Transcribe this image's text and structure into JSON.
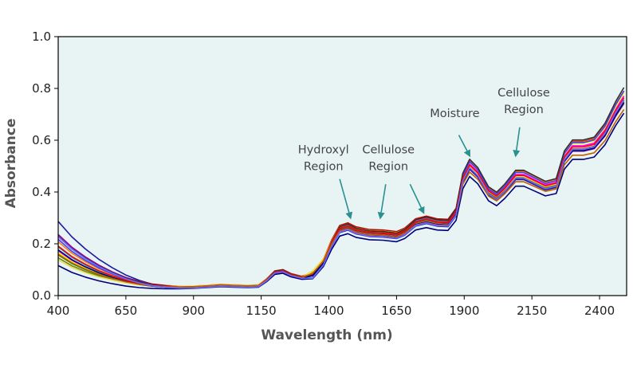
{
  "chart_data": {
    "type": "line",
    "title": "",
    "xlabel": "Wavelength (nm)",
    "ylabel": "Absorbance",
    "xlim": [
      400,
      2500
    ],
    "ylim": [
      0,
      1.0
    ],
    "x_ticks": [
      "400",
      "650",
      "900",
      "1150",
      "1400",
      "1650",
      "1900",
      "2150",
      "2400"
    ],
    "y_ticks": [
      "0.0",
      "0.2",
      "0.4",
      "0.6",
      "0.8",
      "1.0"
    ],
    "grid": false,
    "legend": "none",
    "background_color": "#e8f4f4",
    "arrow_color": "#2a9090",
    "base_spectrum": [
      [
        400,
        0.19
      ],
      [
        450,
        0.15
      ],
      [
        500,
        0.12
      ],
      [
        550,
        0.095
      ],
      [
        600,
        0.075
      ],
      [
        650,
        0.058
      ],
      [
        700,
        0.046
      ],
      [
        750,
        0.038
      ],
      [
        800,
        0.034
      ],
      [
        850,
        0.032
      ],
      [
        900,
        0.033
      ],
      [
        950,
        0.036
      ],
      [
        1000,
        0.04
      ],
      [
        1050,
        0.038
      ],
      [
        1100,
        0.036
      ],
      [
        1140,
        0.038
      ],
      [
        1170,
        0.06
      ],
      [
        1200,
        0.09
      ],
      [
        1230,
        0.095
      ],
      [
        1260,
        0.08
      ],
      [
        1300,
        0.07
      ],
      [
        1340,
        0.08
      ],
      [
        1380,
        0.13
      ],
      [
        1410,
        0.2
      ],
      [
        1440,
        0.255
      ],
      [
        1470,
        0.265
      ],
      [
        1500,
        0.25
      ],
      [
        1550,
        0.24
      ],
      [
        1600,
        0.238
      ],
      [
        1650,
        0.232
      ],
      [
        1680,
        0.245
      ],
      [
        1720,
        0.28
      ],
      [
        1760,
        0.29
      ],
      [
        1800,
        0.28
      ],
      [
        1840,
        0.278
      ],
      [
        1870,
        0.32
      ],
      [
        1895,
        0.45
      ],
      [
        1920,
        0.5
      ],
      [
        1950,
        0.47
      ],
      [
        1990,
        0.4
      ],
      [
        2020,
        0.38
      ],
      [
        2050,
        0.41
      ],
      [
        2090,
        0.46
      ],
      [
        2120,
        0.46
      ],
      [
        2160,
        0.44
      ],
      [
        2200,
        0.42
      ],
      [
        2240,
        0.43
      ],
      [
        2270,
        0.53
      ],
      [
        2300,
        0.57
      ],
      [
        2340,
        0.57
      ],
      [
        2380,
        0.58
      ],
      [
        2420,
        0.63
      ],
      [
        2460,
        0.71
      ],
      [
        2490,
        0.76
      ]
    ],
    "series": [
      {
        "color": "#1a1aa0",
        "offset": -0.012,
        "scale": 1.0,
        "start_bump": 0.1
      },
      {
        "color": "#00007a",
        "offset": -0.01,
        "scale": 0.94,
        "start_bump": -0.06
      },
      {
        "color": "#c00000",
        "offset": 0.008,
        "scale": 1.03,
        "start_bump": 0.03
      },
      {
        "color": "#800000",
        "offset": 0.005,
        "scale": 0.985,
        "start_bump": 0.04
      },
      {
        "color": "#ff00ff",
        "offset": 0.003,
        "scale": 1.01,
        "start_bump": -0.02
      },
      {
        "color": "#008000",
        "offset": 0.01,
        "scale": 0.97,
        "start_bump": -0.03
      },
      {
        "color": "#00a0a0",
        "offset": -0.004,
        "scale": 0.995,
        "start_bump": 0.0
      },
      {
        "color": "#808000",
        "offset": 0.015,
        "scale": 0.955,
        "start_bump": -0.04
      },
      {
        "color": "#ffff00",
        "offset": 0.006,
        "scale": 1.02,
        "start_bump": -0.03
      },
      {
        "color": "#e0e060",
        "offset": 0.018,
        "scale": 0.96,
        "start_bump": -0.05
      },
      {
        "color": "#ff8000",
        "offset": 0.0,
        "scale": 1.04,
        "start_bump": 0.01
      },
      {
        "color": "#4040ff",
        "offset": -0.008,
        "scale": 1.05,
        "start_bump": 0.02
      },
      {
        "color": "#a000a0",
        "offset": 0.002,
        "scale": 0.975,
        "start_bump": 0.05
      },
      {
        "color": "#303030",
        "offset": -0.006,
        "scale": 1.065,
        "start_bump": 0.03
      },
      {
        "color": "#ff0000",
        "offset": 0.004,
        "scale": 1.0,
        "start_bump": 0.0
      },
      {
        "color": "#000080",
        "offset": -0.002,
        "scale": 0.985,
        "start_bump": -0.01
      },
      {
        "color": "#c06000",
        "offset": 0.012,
        "scale": 0.93,
        "start_bump": -0.02
      },
      {
        "color": "#6a6aff",
        "offset": -0.014,
        "scale": 1.015,
        "start_bump": 0.04
      }
    ],
    "annotations": [
      {
        "lines": [
          "Hydroxyl",
          "Region"
        ],
        "text_x": 1380,
        "text_y": 0.55,
        "arrow_from": [
          1440,
          0.45
        ],
        "arrow_to": [
          1480,
          0.3
        ]
      },
      {
        "lines": [
          "Cellulose",
          "Region"
        ],
        "text_x": 1620,
        "text_y": 0.55,
        "arrow_from": [
          1610,
          0.43
        ],
        "arrow_to": [
          1590,
          0.3
        ]
      },
      {
        "lines": [],
        "text_x": 0,
        "text_y": 0,
        "arrow_from": [
          1700,
          0.43
        ],
        "arrow_to": [
          1750,
          0.32
        ]
      },
      {
        "lines": [
          "Moisture"
        ],
        "text_x": 1865,
        "text_y": 0.69,
        "arrow_from": [
          1880,
          0.62
        ],
        "arrow_to": [
          1920,
          0.54
        ]
      },
      {
        "lines": [
          "Cellulose",
          "Region"
        ],
        "text_x": 2120,
        "text_y": 0.77,
        "arrow_from": [
          2105,
          0.65
        ],
        "arrow_to": [
          2090,
          0.54
        ]
      }
    ]
  }
}
